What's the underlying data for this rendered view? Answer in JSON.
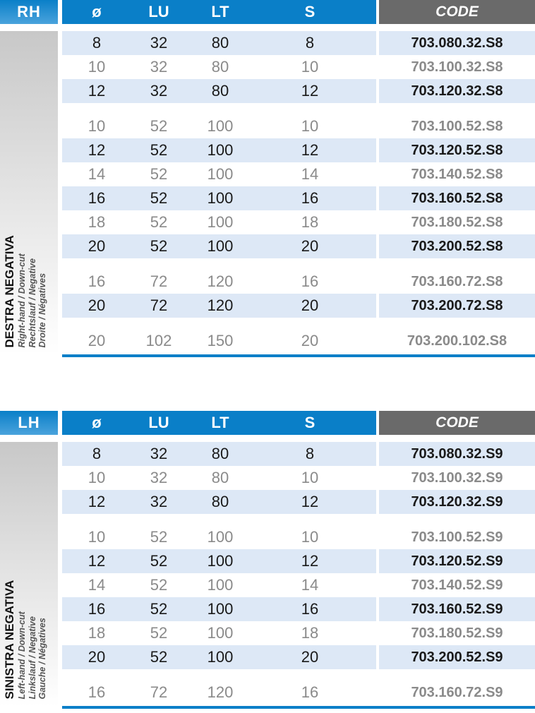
{
  "columns": {
    "dia": "ø",
    "lu": "LU",
    "lt": "LT",
    "s": "S",
    "code": "CODE"
  },
  "colors": {
    "header_blue": "#0a7fc8",
    "code_gray": "#6a6a6a",
    "row_highlight": "#dde8f6"
  },
  "tables": [
    {
      "hand": "RH",
      "title": "DESTRA NEGATIVA",
      "subtitles": [
        "Right-hand / Down-cut",
        "Rechtslauf / Negative",
        "Droite / Négatives"
      ],
      "groups": [
        [
          {
            "dia": "8",
            "lu": "32",
            "lt": "80",
            "s": "8",
            "code": "703.080.32.S8",
            "hl": true
          },
          {
            "dia": "10",
            "lu": "32",
            "lt": "80",
            "s": "10",
            "code": "703.100.32.S8",
            "hl": false
          },
          {
            "dia": "12",
            "lu": "32",
            "lt": "80",
            "s": "12",
            "code": "703.120.32.S8",
            "hl": true
          }
        ],
        [
          {
            "dia": "10",
            "lu": "52",
            "lt": "100",
            "s": "10",
            "code": "703.100.52.S8",
            "hl": false
          },
          {
            "dia": "12",
            "lu": "52",
            "lt": "100",
            "s": "12",
            "code": "703.120.52.S8",
            "hl": true
          },
          {
            "dia": "14",
            "lu": "52",
            "lt": "100",
            "s": "14",
            "code": "703.140.52.S8",
            "hl": false
          },
          {
            "dia": "16",
            "lu": "52",
            "lt": "100",
            "s": "16",
            "code": "703.160.52.S8",
            "hl": true
          },
          {
            "dia": "18",
            "lu": "52",
            "lt": "100",
            "s": "18",
            "code": "703.180.52.S8",
            "hl": false
          },
          {
            "dia": "20",
            "lu": "52",
            "lt": "100",
            "s": "20",
            "code": "703.200.52.S8",
            "hl": true
          }
        ],
        [
          {
            "dia": "16",
            "lu": "72",
            "lt": "120",
            "s": "16",
            "code": "703.160.72.S8",
            "hl": false
          },
          {
            "dia": "20",
            "lu": "72",
            "lt": "120",
            "s": "20",
            "code": "703.200.72.S8",
            "hl": true
          }
        ],
        [
          {
            "dia": "20",
            "lu": "102",
            "lt": "150",
            "s": "20",
            "code": "703.200.102.S8",
            "hl": false
          }
        ]
      ]
    },
    {
      "hand": "LH",
      "title": "SINISTRA NEGATIVA",
      "subtitles": [
        "Left-hand / Down-cut",
        "Linkslauf / Negative",
        "Gauche / Négatives"
      ],
      "groups": [
        [
          {
            "dia": "8",
            "lu": "32",
            "lt": "80",
            "s": "8",
            "code": "703.080.32.S9",
            "hl": true
          },
          {
            "dia": "10",
            "lu": "32",
            "lt": "80",
            "s": "10",
            "code": "703.100.32.S9",
            "hl": false
          },
          {
            "dia": "12",
            "lu": "32",
            "lt": "80",
            "s": "12",
            "code": "703.120.32.S9",
            "hl": true
          }
        ],
        [
          {
            "dia": "10",
            "lu": "52",
            "lt": "100",
            "s": "10",
            "code": "703.100.52.S9",
            "hl": false
          },
          {
            "dia": "12",
            "lu": "52",
            "lt": "100",
            "s": "12",
            "code": "703.120.52.S9",
            "hl": true
          },
          {
            "dia": "14",
            "lu": "52",
            "lt": "100",
            "s": "14",
            "code": "703.140.52.S9",
            "hl": false
          },
          {
            "dia": "16",
            "lu": "52",
            "lt": "100",
            "s": "16",
            "code": "703.160.52.S9",
            "hl": true
          },
          {
            "dia": "18",
            "lu": "52",
            "lt": "100",
            "s": "18",
            "code": "703.180.52.S9",
            "hl": false
          },
          {
            "dia": "20",
            "lu": "52",
            "lt": "100",
            "s": "20",
            "code": "703.200.52.S9",
            "hl": true
          }
        ],
        [
          {
            "dia": "16",
            "lu": "72",
            "lt": "120",
            "s": "16",
            "code": "703.160.72.S9",
            "hl": false
          }
        ]
      ]
    }
  ]
}
